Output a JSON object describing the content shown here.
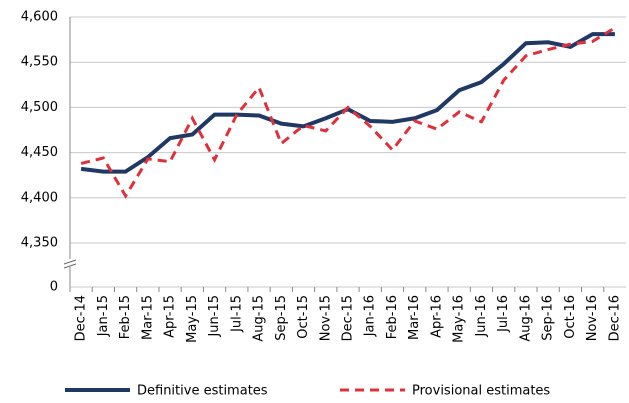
{
  "chart_data": {
    "type": "line",
    "categories": [
      "Dec-14",
      "Jan-15",
      "Feb-15",
      "Mar-15",
      "Apr-15",
      "May-15",
      "Jun-15",
      "Jul-15",
      "Aug-15",
      "Sep-15",
      "Oct-15",
      "Nov-15",
      "Dec-15",
      "Jan-16",
      "Feb-16",
      "Mar-16",
      "Apr-16",
      "May-16",
      "Jun-16",
      "Jul-16",
      "Aug-16",
      "Sep-16",
      "Oct-16",
      "Nov-16",
      "Dec-16"
    ],
    "series": [
      {
        "name": "Definitive estimates",
        "color": "#1f3864",
        "dashed": false,
        "values": [
          4432,
          4429,
          4429,
          4445,
          4466,
          4470,
          4492,
          4492,
          4491,
          4482,
          4479,
          4488,
          4498,
          4485,
          4484,
          4488,
          4497,
          4519,
          4528,
          4548,
          4571,
          4572,
          4567,
          4581,
          4581
        ]
      },
      {
        "name": "Provisional estimates",
        "color": "#e0303c",
        "dashed": true,
        "values": [
          4438,
          4444,
          4402,
          4443,
          4440,
          4488,
          4442,
          4492,
          4522,
          4460,
          4480,
          4474,
          4500,
          4479,
          4453,
          4485,
          4476,
          4495,
          4484,
          4530,
          4557,
          4564,
          4570,
          4573,
          4588
        ]
      }
    ],
    "ylim": [
      0,
      4600
    ],
    "axis_break": [
      0,
      4350
    ],
    "yticks": [
      0,
      {
        "value": 4350,
        "label": "4,350"
      },
      {
        "value": 4400,
        "label": "4,400"
      },
      {
        "value": 4450,
        "label": "4,450"
      },
      {
        "value": 4500,
        "label": "4,500"
      },
      {
        "value": 4550,
        "label": "4,550"
      },
      {
        "value": 4600,
        "label": "4,600"
      }
    ],
    "grid": true,
    "legend": "bottom"
  }
}
